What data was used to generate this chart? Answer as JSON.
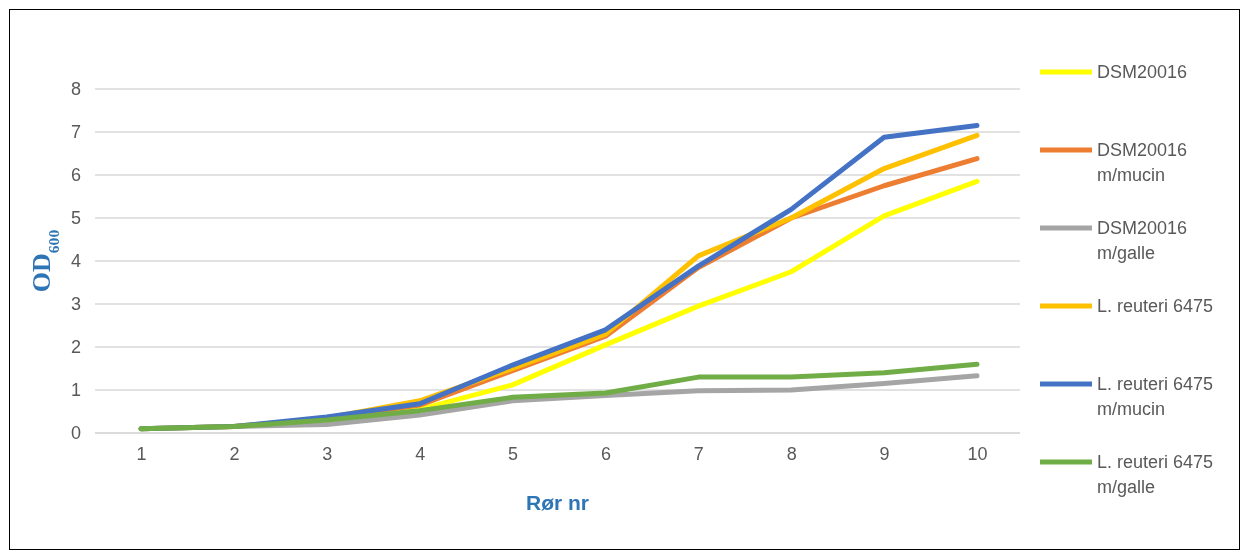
{
  "chart_data": {
    "type": "line",
    "xlabel": "Rør nr",
    "ylabel": "OD$_{600}$",
    "categories": [
      "1",
      "2",
      "3",
      "4",
      "5",
      "6",
      "7",
      "8",
      "9",
      "10"
    ],
    "ylim": [
      0,
      8
    ],
    "yticks": [
      0,
      1,
      2,
      3,
      4,
      5,
      6,
      7,
      8
    ],
    "grid": "y",
    "legend": "right",
    "marker": "none",
    "line_style": "solid",
    "series": [
      {
        "name": "DSM20016",
        "color": "#ffff00",
        "values": [
          null,
          null,
          0.3,
          0.55,
          1.12,
          2.05,
          2.95,
          3.75,
          5.05,
          5.85
        ]
      },
      {
        "name": "DSM20016 m/mucin",
        "color": "#ed7d31",
        "values": [
          null,
          null,
          0.35,
          0.65,
          1.45,
          2.25,
          3.85,
          5.0,
          5.75,
          6.38
        ]
      },
      {
        "name": "DSM20016 m/galle",
        "color": "#a5a5a5",
        "values": [
          0.1,
          0.15,
          0.2,
          0.42,
          0.75,
          0.87,
          0.98,
          1.0,
          1.15,
          1.33
        ]
      },
      {
        "name": "L. reuteri 6475",
        "color": "#ffc000",
        "values": [
          0.1,
          0.15,
          0.35,
          0.75,
          1.5,
          2.3,
          4.12,
          5.0,
          6.15,
          6.92
        ]
      },
      {
        "name": "L. reuteri 6475 m/mucin",
        "color": "#4472c4",
        "values": [
          0.1,
          0.15,
          0.37,
          0.68,
          1.58,
          2.4,
          3.88,
          5.2,
          6.88,
          7.15
        ]
      },
      {
        "name": "L. reuteri 6475 m/galle",
        "color": "#70ad47",
        "values": [
          0.1,
          0.15,
          0.3,
          0.52,
          0.83,
          0.93,
          1.3,
          1.3,
          1.4,
          1.6
        ]
      }
    ]
  }
}
